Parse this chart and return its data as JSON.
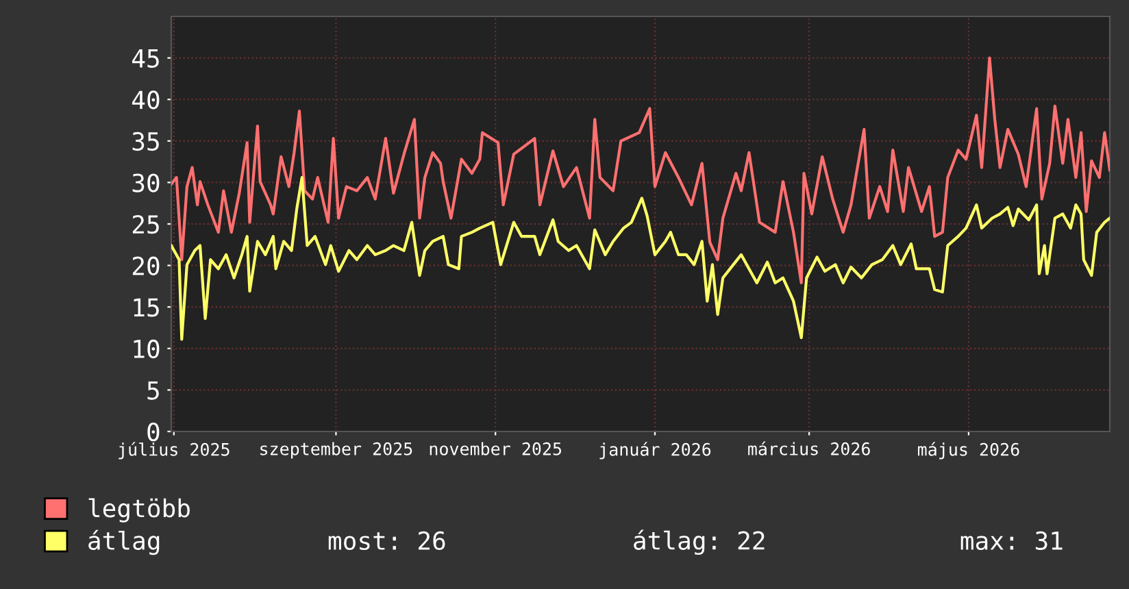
{
  "chart_data": {
    "type": "line",
    "xlim": [
      "2025-06-30",
      "2026-06-24"
    ],
    "ylim": [
      0,
      50
    ],
    "yticks": [
      0,
      5,
      10,
      15,
      20,
      25,
      30,
      35,
      40,
      45
    ],
    "xticks": [
      {
        "value": "2025-07-01",
        "label": "július 2025"
      },
      {
        "value": "2025-09-01",
        "label": "szeptember 2025"
      },
      {
        "value": "2025-11-01",
        "label": "november 2025"
      },
      {
        "value": "2026-01-01",
        "label": "január 2026"
      },
      {
        "value": "2026-03-01",
        "label": "március 2026"
      },
      {
        "value": "2026-05-01",
        "label": "május 2026"
      }
    ],
    "grid": true,
    "legend": "bottom",
    "marker": "none",
    "line_style": "solid",
    "annotations": [
      "most: 26",
      "átlag: 22",
      "max: 31"
    ],
    "series": [
      {
        "name": "legtöbb",
        "color": "#ff7070",
        "x": [
          "2025-06-30",
          "2025-07-02",
          "2025-07-04",
          "2025-07-06",
          "2025-07-08",
          "2025-07-10",
          "2025-07-11",
          "2025-07-14",
          "2025-07-18",
          "2025-07-20",
          "2025-07-23",
          "2025-07-26",
          "2025-07-29",
          "2025-07-30",
          "2025-08-02",
          "2025-08-03",
          "2025-08-07",
          "2025-08-08",
          "2025-08-11",
          "2025-08-14",
          "2025-08-16",
          "2025-08-18",
          "2025-08-20",
          "2025-08-23",
          "2025-08-25",
          "2025-08-29",
          "2025-08-31",
          "2025-09-02",
          "2025-09-05",
          "2025-09-09",
          "2025-09-13",
          "2025-09-16",
          "2025-09-20",
          "2025-09-23",
          "2025-09-27",
          "2025-10-01",
          "2025-10-03",
          "2025-10-05",
          "2025-10-08",
          "2025-10-11",
          "2025-10-12",
          "2025-10-15",
          "2025-10-19",
          "2025-10-23",
          "2025-10-26",
          "2025-10-27",
          "2025-11-02",
          "2025-11-04",
          "2025-11-08",
          "2025-11-16",
          "2025-11-18",
          "2025-11-23",
          "2025-11-27",
          "2025-12-02",
          "2025-12-07",
          "2025-12-09",
          "2025-12-11",
          "2025-12-16",
          "2025-12-19",
          "2025-12-26",
          "2025-12-30",
          "2026-01-01",
          "2026-01-05",
          "2026-01-10",
          "2026-01-15",
          "2026-01-19",
          "2026-01-22",
          "2026-01-25",
          "2026-01-27",
          "2026-02-01",
          "2026-02-03",
          "2026-02-06",
          "2026-02-10",
          "2026-02-16",
          "2026-02-19",
          "2026-02-23",
          "2026-02-26",
          "2026-02-27",
          "2026-03-02",
          "2026-03-06",
          "2026-03-10",
          "2026-03-14",
          "2026-03-17",
          "2026-03-22",
          "2026-03-24",
          "2026-03-28",
          "2026-03-31",
          "2026-04-02",
          "2026-04-06",
          "2026-04-08",
          "2026-04-13",
          "2026-04-16",
          "2026-04-18",
          "2026-04-21",
          "2026-04-23",
          "2026-04-27",
          "2026-04-30",
          "2026-05-04",
          "2026-05-06",
          "2026-05-09",
          "2026-05-11",
          "2026-05-13",
          "2026-05-16",
          "2026-05-20",
          "2026-05-23",
          "2026-05-27",
          "2026-05-29",
          "2026-06-01",
          "2026-06-03",
          "2026-06-06",
          "2026-06-08",
          "2026-06-11",
          "2026-06-13",
          "2026-06-15",
          "2026-06-17",
          "2026-06-20",
          "2026-06-22",
          "2026-06-24"
        ],
        "values": [
          29.8,
          30.6,
          20.7,
          29.5,
          31.8,
          27.3,
          30.1,
          27.3,
          24,
          29,
          24,
          28.7,
          34.8,
          25.2,
          36.8,
          30.1,
          27.3,
          26.2,
          33.1,
          29.5,
          33.6,
          38.6,
          29,
          28,
          30.6,
          25.2,
          35.3,
          25.7,
          29.5,
          29,
          30.6,
          28,
          35.3,
          28.7,
          33.4,
          37.6,
          25.7,
          30.6,
          33.6,
          32.3,
          30.1,
          25.7,
          32.8,
          31.1,
          32.8,
          36,
          34.8,
          27.3,
          33.4,
          35.3,
          27.3,
          33.8,
          29.5,
          31.8,
          25.7,
          37.6,
          30.6,
          29,
          35,
          36,
          38.9,
          29.5,
          33.6,
          30.6,
          27.3,
          32.3,
          22.8,
          20.7,
          25.7,
          31.1,
          29,
          33.6,
          25.2,
          24,
          30.1,
          24,
          17.9,
          31.1,
          26.2,
          33.1,
          28,
          24,
          27.3,
          36.4,
          25.7,
          29.5,
          26.5,
          33.9,
          26.5,
          31.8,
          26.5,
          29.5,
          23.5,
          24,
          30.6,
          33.9,
          32.8,
          38.1,
          31.8,
          45,
          37.6,
          31.8,
          36.4,
          33.4,
          29.5,
          38.9,
          28,
          32.3,
          39.2,
          32.3,
          37.6,
          30.6,
          36,
          26.5,
          32.6,
          30.6,
          36,
          31.5
        ]
      },
      {
        "name": "átlag",
        "color": "#ffff66",
        "x": [
          "2025-06-30",
          "2025-07-03",
          "2025-07-04",
          "2025-07-06",
          "2025-07-09",
          "2025-07-11",
          "2025-07-13",
          "2025-07-15",
          "2025-07-18",
          "2025-07-21",
          "2025-07-24",
          "2025-07-27",
          "2025-07-29",
          "2025-07-30",
          "2025-08-02",
          "2025-08-05",
          "2025-08-08",
          "2025-08-09",
          "2025-08-12",
          "2025-08-15",
          "2025-08-17",
          "2025-08-19",
          "2025-08-21",
          "2025-08-24",
          "2025-08-28",
          "2025-08-30",
          "2025-09-02",
          "2025-09-06",
          "2025-09-09",
          "2025-09-13",
          "2025-09-16",
          "2025-09-20",
          "2025-09-23",
          "2025-09-27",
          "2025-09-30",
          "2025-10-03",
          "2025-10-05",
          "2025-10-08",
          "2025-10-12",
          "2025-10-14",
          "2025-10-18",
          "2025-10-19",
          "2025-10-23",
          "2025-10-26",
          "2025-10-31",
          "2025-11-03",
          "2025-11-08",
          "2025-11-11",
          "2025-11-16",
          "2025-11-18",
          "2025-11-23",
          "2025-11-25",
          "2025-11-29",
          "2025-12-02",
          "2025-12-07",
          "2025-12-09",
          "2025-12-13",
          "2025-12-16",
          "2025-12-20",
          "2025-12-23",
          "2025-12-27",
          "2025-12-29",
          "2026-01-01",
          "2026-01-05",
          "2026-01-07",
          "2026-01-10",
          "2026-01-13",
          "2026-01-16",
          "2026-01-19",
          "2026-01-21",
          "2026-01-23",
          "2026-01-25",
          "2026-01-27",
          "2026-01-31",
          "2026-02-03",
          "2026-02-06",
          "2026-02-09",
          "2026-02-13",
          "2026-02-16",
          "2026-02-19",
          "2026-02-23",
          "2026-02-26",
          "2026-02-28",
          "2026-03-04",
          "2026-03-07",
          "2026-03-11",
          "2026-03-14",
          "2026-03-17",
          "2026-03-21",
          "2026-03-25",
          "2026-03-29",
          "2026-04-02",
          "2026-04-05",
          "2026-04-09",
          "2026-04-11",
          "2026-04-16",
          "2026-04-18",
          "2026-04-21",
          "2026-04-23",
          "2026-04-27",
          "2026-04-30",
          "2026-05-04",
          "2026-05-06",
          "2026-05-10",
          "2026-05-13",
          "2026-05-16",
          "2026-05-18",
          "2026-05-20",
          "2026-05-24",
          "2026-05-27",
          "2026-05-28",
          "2026-05-30",
          "2026-05-31",
          "2026-06-03",
          "2026-06-06",
          "2026-06-09",
          "2026-06-11",
          "2026-06-13",
          "2026-06-14",
          "2026-06-17",
          "2026-06-19",
          "2026-06-22",
          "2026-06-24"
        ],
        "values": [
          22.4,
          20.7,
          11.1,
          20.1,
          21.8,
          22.4,
          13.6,
          20.7,
          19.6,
          21.3,
          18.5,
          21.3,
          23.5,
          16.9,
          22.9,
          21.3,
          23.5,
          19.6,
          22.9,
          21.8,
          26.8,
          30.6,
          22.4,
          23.5,
          20.1,
          22.4,
          19.3,
          21.8,
          20.7,
          22.4,
          21.3,
          21.8,
          22.4,
          21.8,
          25.2,
          18.8,
          21.8,
          22.9,
          23.5,
          20.1,
          19.6,
          23.5,
          24,
          24.5,
          25.2,
          20.1,
          25.2,
          23.5,
          23.5,
          21.3,
          25.5,
          22.9,
          21.8,
          22.4,
          19.6,
          24.3,
          21.3,
          22.9,
          24.5,
          25.2,
          28.1,
          26,
          21.3,
          22.9,
          24,
          21.3,
          21.3,
          20.1,
          22.9,
          15.7,
          20.1,
          14.1,
          18.5,
          20.1,
          21.3,
          19.6,
          17.9,
          20.4,
          17.9,
          18.5,
          15.7,
          11.3,
          18.5,
          21,
          19.3,
          20.1,
          17.9,
          19.8,
          18.5,
          20.1,
          20.7,
          22.4,
          20.1,
          22.6,
          19.6,
          19.6,
          17.1,
          16.8,
          22.4,
          23.5,
          24.5,
          27.3,
          24.5,
          25.7,
          26.2,
          27,
          24.8,
          26.8,
          25.5,
          27.3,
          19,
          22.4,
          19,
          25.7,
          26.2,
          24.5,
          27.3,
          26.2,
          20.7,
          18.8,
          24,
          25.2,
          25.7
        ]
      }
    ]
  }
}
